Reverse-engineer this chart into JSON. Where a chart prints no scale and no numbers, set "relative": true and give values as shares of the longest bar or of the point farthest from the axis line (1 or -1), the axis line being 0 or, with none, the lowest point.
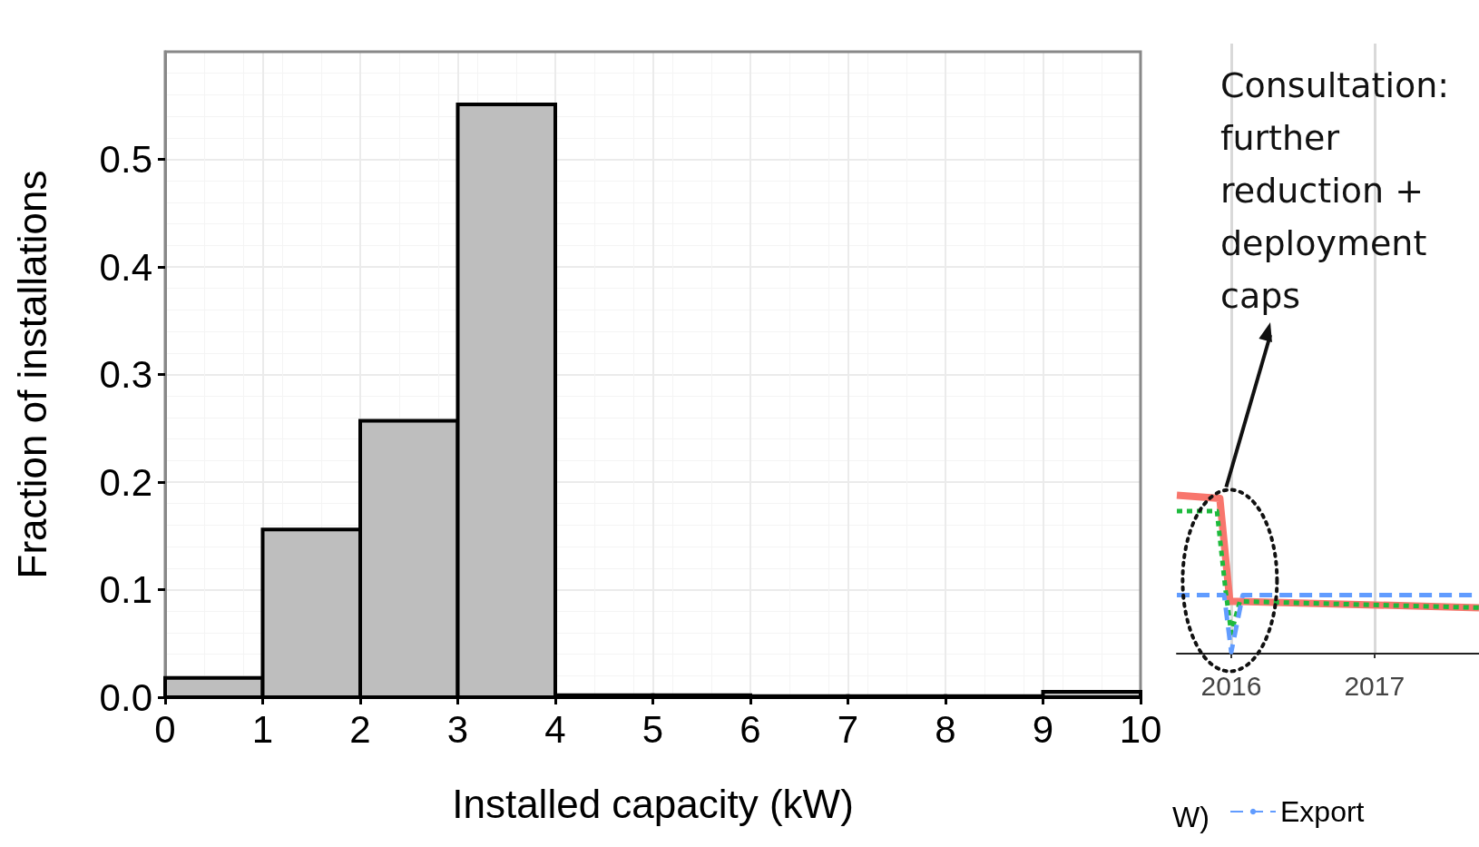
{
  "chart_data": [
    {
      "type": "histogram",
      "xlabel": "Installed capacity (kW)",
      "ylabel": "Fraction of installations",
      "bins": [
        0,
        1,
        2,
        3,
        4,
        5,
        6,
        7,
        8,
        9,
        10
      ],
      "values": [
        0.018,
        0.156,
        0.257,
        0.551,
        0.002,
        0.002,
        0.001,
        0.001,
        0.001,
        0.005
      ],
      "color": "#bebebe",
      "xlim": [
        0,
        10
      ],
      "xticks": [
        0,
        1,
        2,
        3,
        4,
        5,
        6,
        7,
        8,
        9,
        10
      ],
      "ylim": [
        0,
        0.6
      ],
      "yticks": [
        {
          "value": 0,
          "label": "0.0"
        },
        0.1,
        0.2,
        0.3,
        0.4,
        0.5
      ],
      "grid": true
    },
    {
      "type": "line",
      "relative": true,
      "xlim": [
        2015.62,
        2017.73
      ],
      "xticks": [
        2016,
        2017
      ],
      "grid": "x",
      "legend": "bottom",
      "annotations": [
        "Consultation: further reduction + deployment caps",
        "W)"
      ],
      "series": [
        {
          "color": "#f8766d",
          "line_style": "solid",
          "x": [
            2015.62,
            2015.92,
            2015.99,
            2016.06,
            2017.73
          ],
          "values": [
            1.0,
            0.98,
            0.33,
            0.33,
            0.29
          ]
        },
        {
          "color": "#1dba3c",
          "line_style": "dotted",
          "x": [
            2015.62,
            2015.9,
            2015.96,
            2016.0,
            2016.06,
            2017.73
          ],
          "values": [
            0.9,
            0.9,
            0.4,
            0.13,
            0.33,
            0.29
          ]
        },
        {
          "name": "Export",
          "color": "#619cff",
          "line_style": "dashed",
          "x": [
            2015.62,
            2015.95,
            2016.0,
            2016.08,
            2017.73
          ],
          "values": [
            0.37,
            0.37,
            0.01,
            0.37,
            0.37
          ]
        }
      ]
    }
  ]
}
